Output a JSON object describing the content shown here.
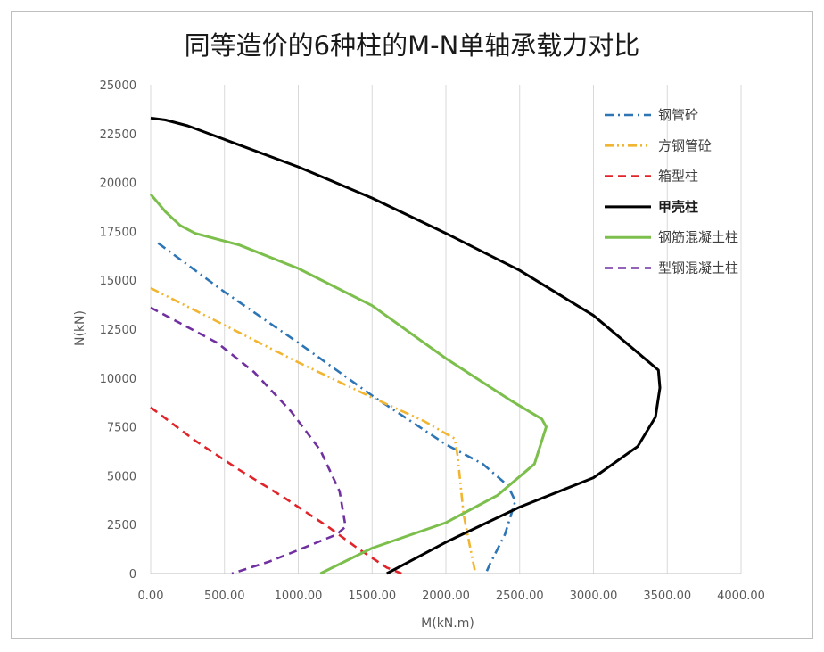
{
  "chart_data": {
    "type": "line",
    "title": "同等造价的6种柱的M-N单轴承载力对比",
    "xlabel": "M(kN.m)",
    "ylabel": "N(kN)",
    "xlim": [
      0,
      4000
    ],
    "ylim": [
      0,
      25000
    ],
    "x_ticks": [
      "0.00",
      "500.00",
      "1000.00",
      "1500.00",
      "2000.00",
      "2500.00",
      "3000.00",
      "3500.00",
      "4000.00"
    ],
    "y_ticks": [
      "0",
      "2500",
      "5000",
      "7500",
      "10000",
      "12500",
      "15000",
      "17500",
      "20000",
      "22500",
      "25000"
    ],
    "grid": "vertical",
    "legend_position": "top-right",
    "series": [
      {
        "name": "钢管砼",
        "color": "#2E75B6",
        "dash": "dash-dot",
        "bold_label": false,
        "points": [
          [
            50,
            16900
          ],
          [
            500,
            14400
          ],
          [
            1000,
            11800
          ],
          [
            1500,
            9100
          ],
          [
            2000,
            6600
          ],
          [
            2250,
            5600
          ],
          [
            2420,
            4500
          ],
          [
            2470,
            3700
          ],
          [
            2400,
            2000
          ],
          [
            2300,
            500
          ],
          [
            2270,
            0
          ]
        ]
      },
      {
        "name": "方钢管砼",
        "color": "#F2B531",
        "dash": "dash-dot-dot",
        "bold_label": false,
        "points": [
          [
            0,
            14600
          ],
          [
            500,
            12700
          ],
          [
            1000,
            10800
          ],
          [
            1500,
            9000
          ],
          [
            1850,
            7800
          ],
          [
            2060,
            6900
          ],
          [
            2080,
            6000
          ],
          [
            2120,
            3000
          ],
          [
            2160,
            1500
          ],
          [
            2200,
            0
          ]
        ]
      },
      {
        "name": "箱型柱",
        "color": "#E0242A",
        "dash": "dash",
        "bold_label": false,
        "points": [
          [
            0,
            8500
          ],
          [
            300,
            6800
          ],
          [
            600,
            5300
          ],
          [
            900,
            3900
          ],
          [
            1200,
            2400
          ],
          [
            1400,
            1300
          ],
          [
            1600,
            300
          ],
          [
            1700,
            0
          ]
        ]
      },
      {
        "name": "甲壳柱",
        "color": "#000000",
        "dash": "solid",
        "bold_label": true,
        "points": [
          [
            0,
            23300
          ],
          [
            100,
            23200
          ],
          [
            250,
            22900
          ],
          [
            500,
            22200
          ],
          [
            1000,
            20800
          ],
          [
            1500,
            19200
          ],
          [
            2000,
            17400
          ],
          [
            2500,
            15500
          ],
          [
            3000,
            13200
          ],
          [
            3300,
            11300
          ],
          [
            3440,
            10400
          ],
          [
            3450,
            9500
          ],
          [
            3420,
            8000
          ],
          [
            3300,
            6500
          ],
          [
            3000,
            4900
          ],
          [
            2500,
            3400
          ],
          [
            2000,
            1600
          ],
          [
            1600,
            0
          ]
        ]
      },
      {
        "name": "钢筋混凝土柱",
        "color": "#7CBF4C",
        "dash": "solid",
        "bold_label": false,
        "points": [
          [
            0,
            19400
          ],
          [
            100,
            18500
          ],
          [
            200,
            17800
          ],
          [
            300,
            17400
          ],
          [
            600,
            16800
          ],
          [
            1000,
            15600
          ],
          [
            1500,
            13700
          ],
          [
            2000,
            11000
          ],
          [
            2450,
            8800
          ],
          [
            2650,
            7900
          ],
          [
            2680,
            7500
          ],
          [
            2600,
            5600
          ],
          [
            2350,
            4000
          ],
          [
            2000,
            2600
          ],
          [
            1500,
            1300
          ],
          [
            1150,
            0
          ]
        ]
      },
      {
        "name": "型钢混凝土柱",
        "color": "#7030A0",
        "dash": "dash",
        "bold_label": false,
        "points": [
          [
            0,
            13600
          ],
          [
            200,
            12800
          ],
          [
            450,
            11800
          ],
          [
            700,
            10300
          ],
          [
            950,
            8300
          ],
          [
            1150,
            6300
          ],
          [
            1280,
            4200
          ],
          [
            1320,
            2400
          ],
          [
            1260,
            2000
          ],
          [
            1000,
            1200
          ],
          [
            800,
            600
          ],
          [
            550,
            0
          ]
        ]
      }
    ]
  }
}
